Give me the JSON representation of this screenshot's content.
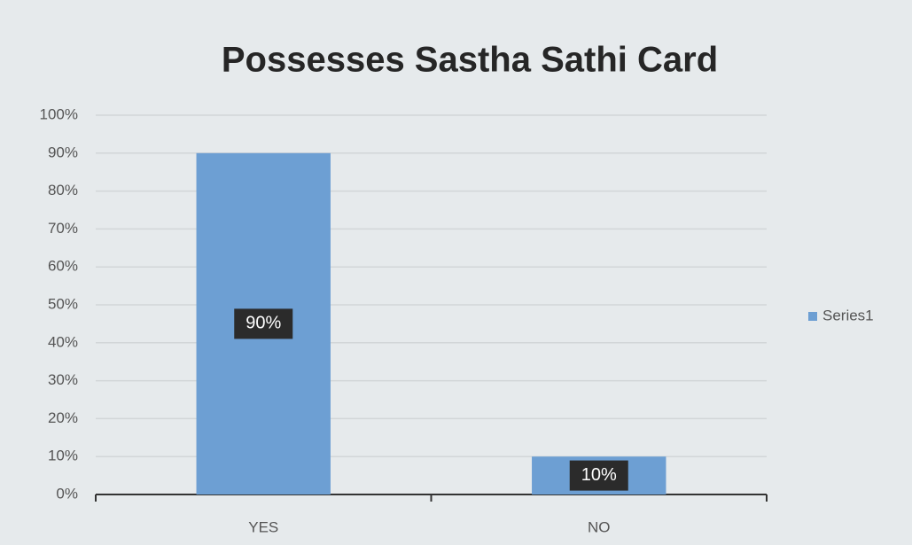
{
  "chart_data": {
    "type": "bar",
    "title": "Possesses Sastha Sathi Card",
    "categories": [
      "YES",
      "NO"
    ],
    "series": [
      {
        "name": "Series1",
        "color": "#6d9fd3",
        "values": [
          90,
          10
        ],
        "value_labels": [
          "90%",
          "10%"
        ]
      }
    ],
    "ylim": [
      0,
      100
    ],
    "yticks": [
      {
        "value": 0,
        "label": "0%"
      },
      {
        "value": 10,
        "label": "10%"
      },
      {
        "value": 20,
        "label": "20%"
      },
      {
        "value": 30,
        "label": "30%"
      },
      {
        "value": 40,
        "label": "40%"
      },
      {
        "value": 50,
        "label": "50%"
      },
      {
        "value": 60,
        "label": "60%"
      },
      {
        "value": 70,
        "label": "70%"
      },
      {
        "value": 80,
        "label": "80%"
      },
      {
        "value": 90,
        "label": "90%"
      },
      {
        "value": 100,
        "label": "100%"
      }
    ],
    "grid": true,
    "legend": "right"
  }
}
